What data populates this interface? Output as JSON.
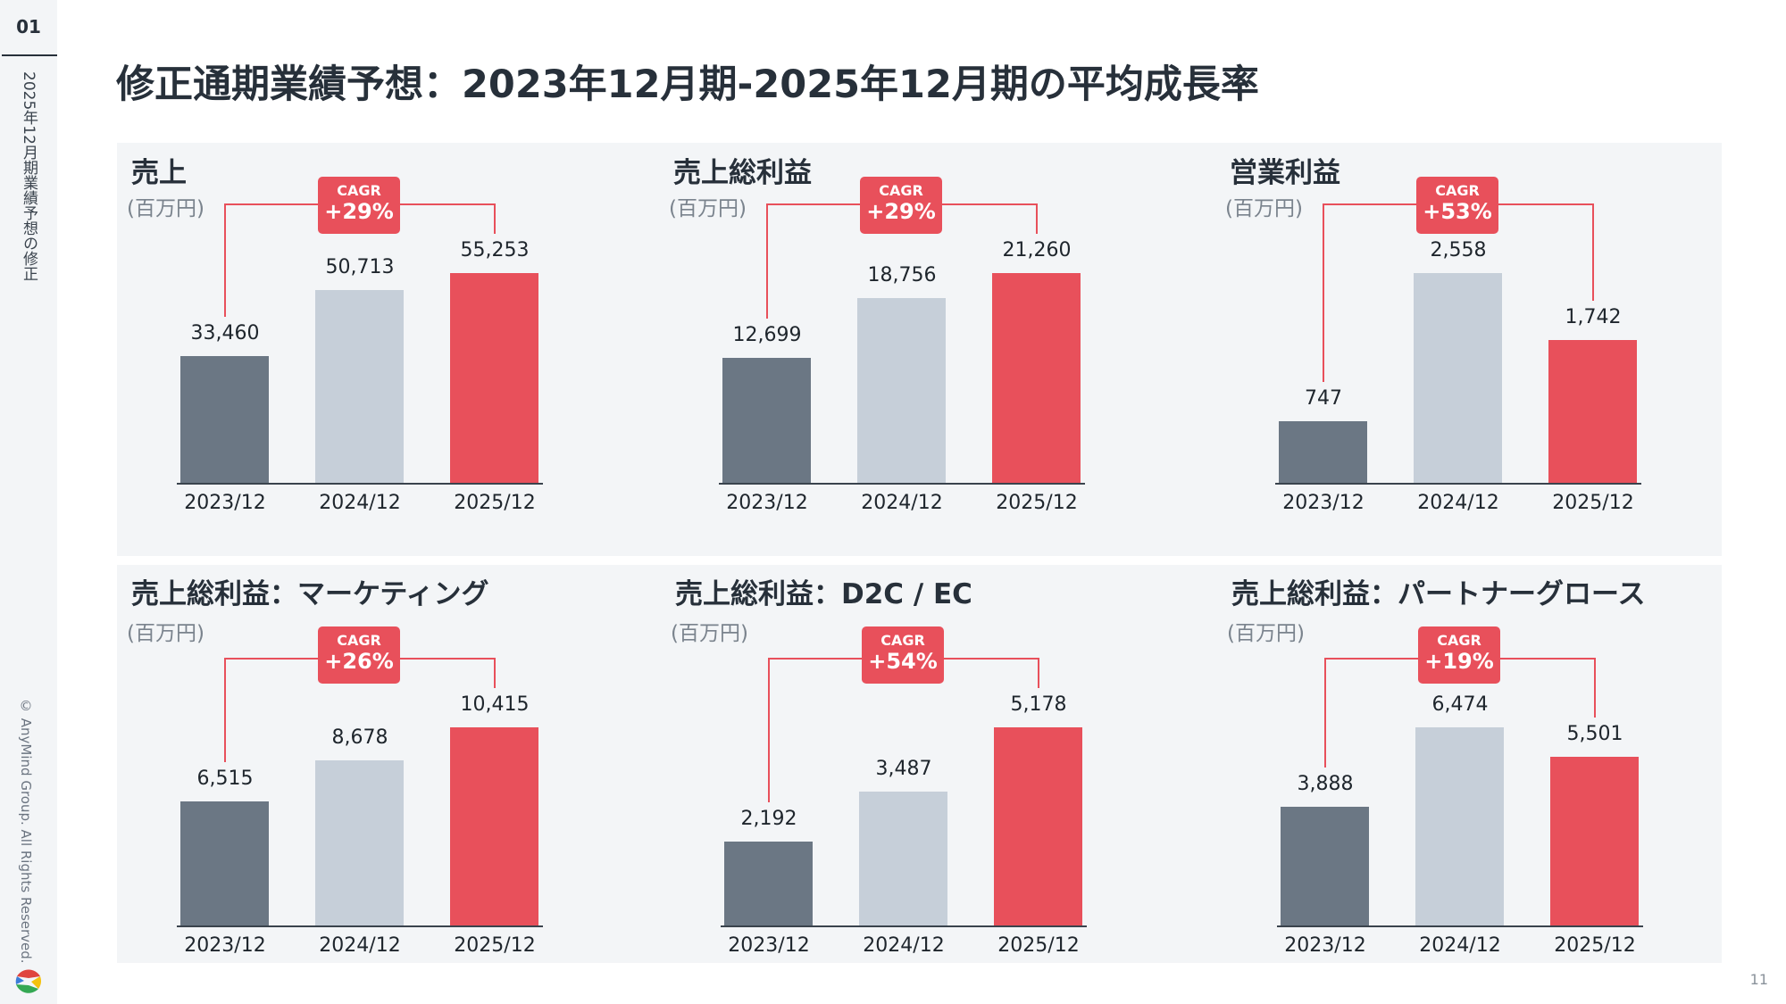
{
  "sidebar": {
    "page_section": "01",
    "section_title": "2025年12月期業績予想の修正",
    "copyright": "© AnyMind Group. All Rights Reserved."
  },
  "title": "修正通期業績予想：2023年12月期-2025年12月期の平均成長率",
  "page_number": "11",
  "colors": {
    "bar_2023": "#6b7784",
    "bar_2024": "#c6cfd9",
    "bar_2025": "#e8505b",
    "accent": "#e8505b"
  },
  "chart_data": [
    {
      "type": "bar",
      "title": "売上",
      "unit": "(百万円)",
      "cagr_label": "CAGR",
      "cagr": "+29%",
      "categories": [
        "2023/12",
        "2024/12",
        "2025/12"
      ],
      "values": [
        33460,
        50713,
        55253
      ],
      "labels": [
        "33,460",
        "50,713",
        "55,253"
      ]
    },
    {
      "type": "bar",
      "title": "売上総利益",
      "unit": "(百万円)",
      "cagr_label": "CAGR",
      "cagr": "+29%",
      "categories": [
        "2023/12",
        "2024/12",
        "2025/12"
      ],
      "values": [
        12699,
        18756,
        21260
      ],
      "labels": [
        "12,699",
        "18,756",
        "21,260"
      ]
    },
    {
      "type": "bar",
      "title": "営業利益",
      "unit": "(百万円)",
      "cagr_label": "CAGR",
      "cagr": "+53%",
      "categories": [
        "2023/12",
        "2024/12",
        "2025/12"
      ],
      "values": [
        747,
        2558,
        1742
      ],
      "labels": [
        "747",
        "2,558",
        "1,742"
      ]
    },
    {
      "type": "bar",
      "title": "売上総利益：マーケティング",
      "unit": "(百万円)",
      "cagr_label": "CAGR",
      "cagr": "+26%",
      "categories": [
        "2023/12",
        "2024/12",
        "2025/12"
      ],
      "values": [
        6515,
        8678,
        10415
      ],
      "labels": [
        "6,515",
        "8,678",
        "10,415"
      ]
    },
    {
      "type": "bar",
      "title": "売上総利益：D2C / EC",
      "unit": "(百万円)",
      "cagr_label": "CAGR",
      "cagr": "+54%",
      "categories": [
        "2023/12",
        "2024/12",
        "2025/12"
      ],
      "values": [
        2192,
        3487,
        5178
      ],
      "labels": [
        "2,192",
        "3,487",
        "5,178"
      ]
    },
    {
      "type": "bar",
      "title": "売上総利益：パートナーグロース",
      "unit": "(百万円)",
      "cagr_label": "CAGR",
      "cagr": "+19%",
      "categories": [
        "2023/12",
        "2024/12",
        "2025/12"
      ],
      "values": [
        3888,
        6474,
        5501
      ],
      "labels": [
        "3,888",
        "6,474",
        "5,501"
      ]
    }
  ]
}
